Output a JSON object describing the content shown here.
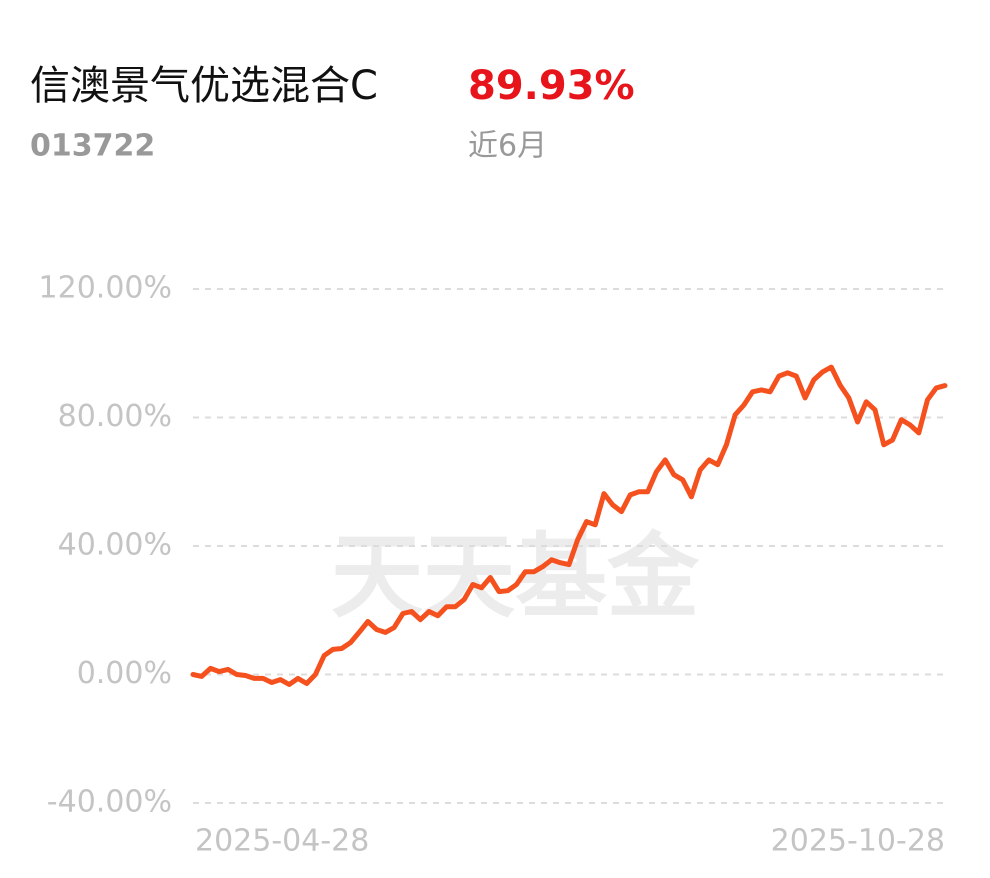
{
  "header": {
    "title": "信澳景气优选混合C",
    "return": "89.93%",
    "code": "013722",
    "period": "近6月",
    "watermark": "天天基金"
  },
  "chart_data": {
    "type": "line",
    "categories": [
      "2025-04-28",
      null,
      null,
      null,
      null,
      null,
      null,
      null,
      null,
      null,
      null,
      null,
      null,
      null,
      null,
      null,
      null,
      null,
      null,
      null,
      null,
      null,
      null,
      null,
      null,
      null,
      null,
      null,
      null,
      null,
      null,
      null,
      null,
      null,
      null,
      null,
      null,
      null,
      null,
      null,
      null,
      null,
      null,
      null,
      null,
      null,
      null,
      null,
      null,
      null,
      null,
      null,
      null,
      null,
      null,
      null,
      null,
      null,
      null,
      null,
      null,
      null,
      null,
      null,
      null,
      null,
      null,
      null,
      null,
      null,
      null,
      null,
      null,
      null,
      null,
      null,
      null,
      null,
      null,
      null,
      null,
      null,
      null,
      null,
      null,
      null,
      "2025-10-28"
    ],
    "series": [
      {
        "color": "#f4511e",
        "values": [
          0,
          -0.6,
          1.9,
          0.9,
          1.6,
          0,
          -0.3,
          -1.2,
          -1.2,
          -2.5,
          -1.6,
          -3.1,
          -1.2,
          -2.8,
          0,
          5.9,
          7.8,
          8.1,
          9.9,
          13.1,
          16.5,
          14,
          13.1,
          14.6,
          19,
          19.6,
          17.1,
          19.6,
          18.3,
          21.1,
          21.1,
          23.3,
          28,
          27,
          30.2,
          25.8,
          26.1,
          28,
          32,
          32,
          33.6,
          35.7,
          34.8,
          34.2,
          42,
          47.6,
          46.6,
          56.3,
          52.8,
          50.7,
          55.9,
          56.9,
          56.9,
          63.1,
          66.8,
          62.2,
          60.6,
          55.3,
          63.7,
          66.8,
          65.3,
          71.5,
          80.8,
          83.9,
          88,
          88.6,
          88,
          92.9,
          93.9,
          92.9,
          86.1,
          91.7,
          94.2,
          95.7,
          90.1,
          86.1,
          78.6,
          84.9,
          82.4,
          71.5,
          73,
          79.3,
          77.7,
          75.2,
          85.5,
          89.2,
          89.93
        ]
      }
    ],
    "ylim": [
      -40,
      120
    ],
    "yticks": [
      {
        "value": 120,
        "label": "120.00%"
      },
      {
        "value": 80,
        "label": "80.00%"
      },
      {
        "value": 40,
        "label": "40.00%"
      },
      {
        "value": 0,
        "label": "0.00%"
      },
      {
        "value": -40,
        "label": "-40.00%"
      }
    ],
    "grid": true
  }
}
